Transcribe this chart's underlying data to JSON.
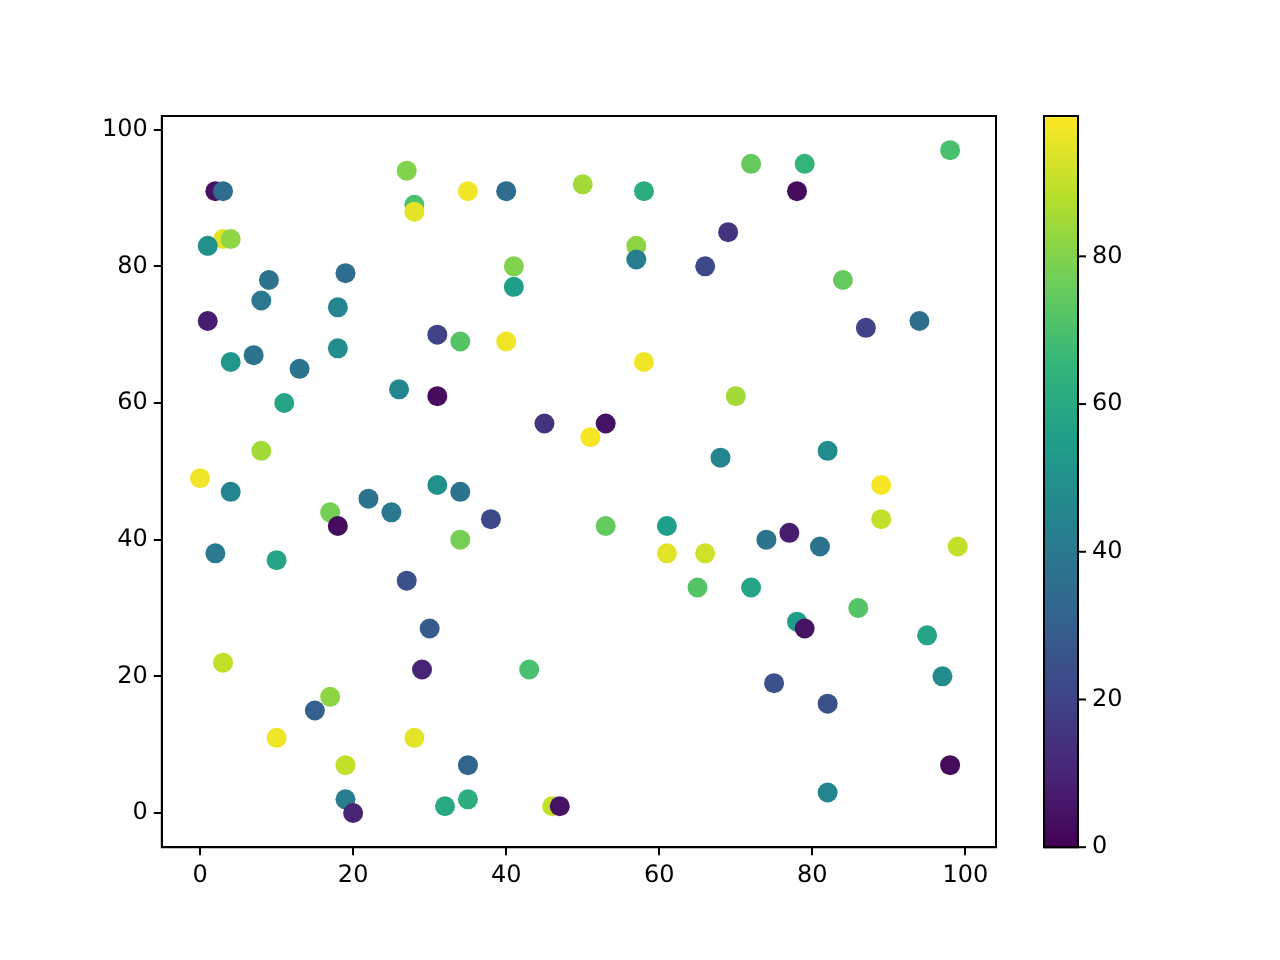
{
  "chart_data": {
    "type": "scatter",
    "marker": "circle",
    "grid": false,
    "legend": false,
    "xlim": [
      -5,
      104
    ],
    "xticks": [
      0,
      20,
      40,
      60,
      80,
      100
    ],
    "ylim": [
      -5,
      102
    ],
    "yticks": [
      0,
      20,
      40,
      60,
      80,
      100
    ],
    "clim": [
      0,
      99
    ],
    "cticks": [
      0,
      20,
      40,
      60,
      80
    ],
    "x": [
      2,
      3,
      27,
      28,
      28,
      35,
      40,
      50,
      72,
      79,
      98,
      58,
      78,
      3,
      4,
      1,
      57,
      57,
      69,
      66,
      41,
      41,
      9,
      8,
      19,
      18,
      84,
      1,
      87,
      94,
      31,
      34,
      40,
      4,
      7,
      13,
      18,
      58,
      26,
      31,
      11,
      70,
      45,
      53,
      51,
      8,
      68,
      82,
      0,
      4,
      31,
      34,
      22,
      25,
      17,
      18,
      38,
      34,
      2,
      10,
      27,
      30,
      3,
      29,
      43,
      17,
      15,
      10,
      28,
      19,
      35,
      19,
      20,
      32,
      35,
      46,
      47,
      89,
      89,
      53,
      61,
      61,
      66,
      74,
      77,
      81,
      99,
      65,
      72,
      86,
      78,
      79,
      95,
      97,
      75,
      82,
      98,
      82
    ],
    "values": [
      91,
      91,
      94,
      89,
      88,
      91,
      91,
      92,
      95,
      95,
      97,
      91,
      91,
      84,
      84,
      83,
      83,
      81,
      85,
      80,
      80,
      77,
      78,
      75,
      79,
      74,
      78,
      72,
      71,
      72,
      70,
      69,
      69,
      66,
      67,
      65,
      68,
      66,
      62,
      61,
      60,
      61,
      57,
      57,
      55,
      53,
      52,
      53,
      49,
      47,
      48,
      47,
      46,
      44,
      44,
      42,
      43,
      40,
      38,
      37,
      34,
      27,
      22,
      21,
      21,
      17,
      15,
      11,
      11,
      7,
      7,
      2,
      0,
      1,
      2,
      1,
      1,
      48,
      43,
      42,
      42,
      38,
      38,
      40,
      41,
      39,
      39,
      33,
      33,
      30,
      28,
      27,
      26,
      20,
      19,
      16,
      7,
      3
    ],
    "cvalues": [
      5,
      35,
      80,
      70,
      95,
      97,
      35,
      85,
      75,
      65,
      70,
      62,
      3,
      95,
      82,
      50,
      82,
      42,
      15,
      22,
      80,
      55,
      38,
      40,
      35,
      45,
      75,
      8,
      20,
      35,
      20,
      72,
      97,
      52,
      38,
      38,
      48,
      97,
      45,
      3,
      58,
      85,
      15,
      5,
      98,
      85,
      45,
      48,
      97,
      45,
      50,
      38,
      38,
      40,
      78,
      3,
      22,
      78,
      40,
      58,
      25,
      28,
      90,
      10,
      70,
      82,
      30,
      97,
      95,
      90,
      32,
      42,
      10,
      60,
      62,
      90,
      5,
      98,
      90,
      75,
      55,
      95,
      92,
      38,
      8,
      38,
      90,
      72,
      58,
      72,
      55,
      5,
      58,
      48,
      25,
      25,
      3,
      45
    ]
  }
}
